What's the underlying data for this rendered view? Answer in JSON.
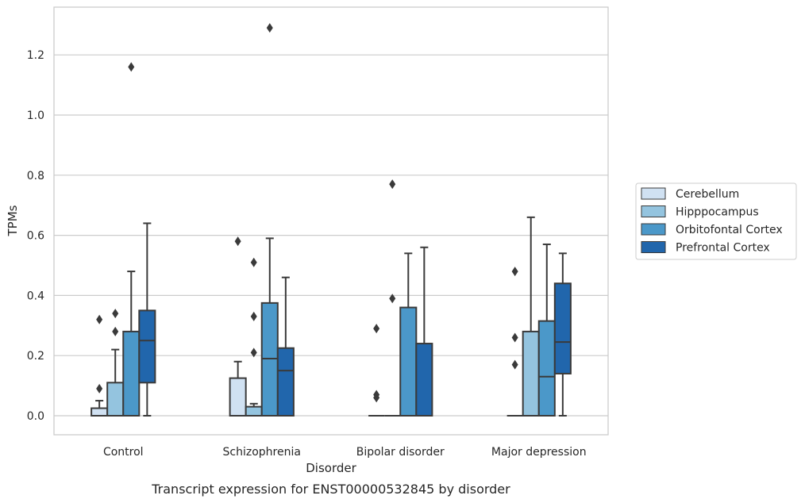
{
  "chart_data": {
    "type": "boxplot",
    "caption": "Transcript expression for ENST00000532845 by disorder",
    "xlabel": "Disorder",
    "ylabel": "TPMs",
    "ylim": [
      -0.065,
      1.36
    ],
    "yticks": [
      0.0,
      0.2,
      0.4,
      0.6,
      0.8,
      1.0,
      1.2
    ],
    "ytick_labels": [
      "0.0",
      "0.2",
      "0.4",
      "0.6",
      "0.8",
      "1.0",
      "1.2"
    ],
    "grid": "horizontal",
    "legend_position": "right",
    "categories": [
      "Control",
      "Schizophrenia",
      "Bipolar disorder",
      "Major depression"
    ],
    "series": [
      {
        "name": "Cerebellum",
        "color": "#d0e1f2",
        "boxes": [
          {
            "q1": 0.0,
            "median": 0.0,
            "q3": 0.025,
            "whisker_low": 0.0,
            "whisker_high": 0.05,
            "outliers": [
              0.09,
              0.32
            ]
          },
          {
            "q1": 0.0,
            "median": 0.0,
            "q3": 0.125,
            "whisker_low": 0.0,
            "whisker_high": 0.18,
            "outliers": [
              0.58
            ]
          },
          {
            "q1": 0.0,
            "median": 0.0,
            "q3": 0.0,
            "whisker_low": 0.0,
            "whisker_high": 0.0,
            "outliers": [
              0.06,
              0.07,
              0.29
            ]
          },
          {
            "q1": 0.0,
            "median": 0.0,
            "q3": 0.0,
            "whisker_low": 0.0,
            "whisker_high": 0.0,
            "outliers": [
              0.17,
              0.26,
              0.48
            ]
          }
        ]
      },
      {
        "name": "Hipppocampus",
        "color": "#94c4df",
        "boxes": [
          {
            "q1": 0.0,
            "median": 0.0,
            "q3": 0.11,
            "whisker_low": 0.0,
            "whisker_high": 0.22,
            "outliers": [
              0.28,
              0.34
            ]
          },
          {
            "q1": 0.0,
            "median": 0.0,
            "q3": 0.03,
            "whisker_low": 0.0,
            "whisker_high": 0.04,
            "outliers": [
              0.21,
              0.33,
              0.51
            ]
          },
          {
            "q1": 0.0,
            "median": 0.0,
            "q3": 0.0,
            "whisker_low": 0.0,
            "whisker_high": 0.0,
            "outliers": [
              0.39,
              0.77
            ]
          },
          {
            "q1": 0.0,
            "median": 0.0,
            "q3": 0.28,
            "whisker_low": 0.0,
            "whisker_high": 0.66,
            "outliers": []
          }
        ]
      },
      {
        "name": "Orbitofontal Cortex",
        "color": "#4b98c9",
        "boxes": [
          {
            "q1": 0.0,
            "median": 0.0,
            "q3": 0.28,
            "whisker_low": 0.0,
            "whisker_high": 0.48,
            "outliers": [
              1.16
            ]
          },
          {
            "q1": 0.0,
            "median": 0.19,
            "q3": 0.375,
            "whisker_low": 0.0,
            "whisker_high": 0.59,
            "outliers": [
              1.29
            ]
          },
          {
            "q1": 0.0,
            "median": 0.0,
            "q3": 0.36,
            "whisker_low": 0.0,
            "whisker_high": 0.54,
            "outliers": []
          },
          {
            "q1": 0.0,
            "median": 0.13,
            "q3": 0.315,
            "whisker_low": 0.0,
            "whisker_high": 0.57,
            "outliers": []
          }
        ]
      },
      {
        "name": "Prefrontal Cortex",
        "color": "#2166ac",
        "boxes": [
          {
            "q1": 0.11,
            "median": 0.25,
            "q3": 0.35,
            "whisker_low": 0.0,
            "whisker_high": 0.64,
            "outliers": []
          },
          {
            "q1": 0.0,
            "median": 0.15,
            "q3": 0.225,
            "whisker_low": 0.0,
            "whisker_high": 0.46,
            "outliers": []
          },
          {
            "q1": 0.0,
            "median": 0.0,
            "q3": 0.24,
            "whisker_low": 0.0,
            "whisker_high": 0.56,
            "outliers": []
          },
          {
            "q1": 0.14,
            "median": 0.245,
            "q3": 0.44,
            "whisker_low": 0.0,
            "whisker_high": 0.54,
            "outliers": []
          }
        ]
      }
    ]
  }
}
